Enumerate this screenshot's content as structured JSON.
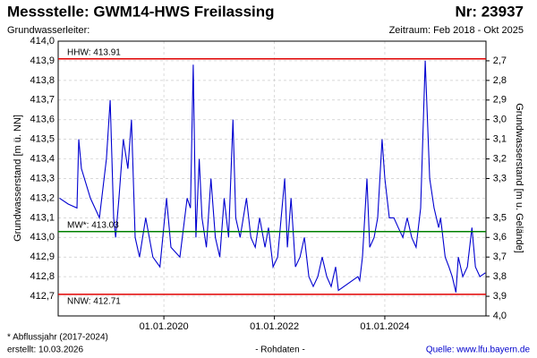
{
  "chart_data": {
    "type": "line",
    "title": "Messstelle: GWM14-HWS Freilassing",
    "station_number": "Nr: 23937",
    "subtitle": "Grundwasserleiter:",
    "period": "Zeitraum: Feb 2018 - Okt 2025",
    "ylabel": "Grundwasserstand [m ü. NN]",
    "y2label": "Grundwasserstand [m u. Gelände]",
    "footnote": "* Abflussjahr (2017-2024)",
    "created": "erstellt:  10.03.2026",
    "data_note": "- Rohdaten -",
    "source": "Quelle:  www.lfu.bayern.de",
    "grid": true,
    "xlim": [
      "2018-02-01",
      "2025-10-31"
    ],
    "xticks": [
      {
        "value": "2020-01-01",
        "label": "01.01.2020"
      },
      {
        "value": "2022-01-01",
        "label": "01.01.2022"
      },
      {
        "value": "2024-01-01",
        "label": "01.01.2024"
      }
    ],
    "ylim": [
      412.6,
      414.0
    ],
    "yticks": [
      {
        "value": 412.7,
        "label": "412,7"
      },
      {
        "value": 412.8,
        "label": "412,8"
      },
      {
        "value": 412.9,
        "label": "412,9"
      },
      {
        "value": 413.0,
        "label": "413,0"
      },
      {
        "value": 413.1,
        "label": "413,1"
      },
      {
        "value": 413.2,
        "label": "413,2"
      },
      {
        "value": 413.3,
        "label": "413,3"
      },
      {
        "value": 413.4,
        "label": "413,4"
      },
      {
        "value": 413.5,
        "label": "413,5"
      },
      {
        "value": 413.6,
        "label": "413,6"
      },
      {
        "value": 413.7,
        "label": "413,7"
      },
      {
        "value": 413.8,
        "label": "413,8"
      },
      {
        "value": 413.9,
        "label": "413,9"
      },
      {
        "value": 414.0,
        "label": "414,0"
      }
    ],
    "y2lim": [
      4.0,
      2.6
    ],
    "y2ticks": [
      {
        "value": 2.7,
        "label": "2,7"
      },
      {
        "value": 2.8,
        "label": "2,8"
      },
      {
        "value": 2.9,
        "label": "2,9"
      },
      {
        "value": 3.0,
        "label": "3,0"
      },
      {
        "value": 3.1,
        "label": "3,1"
      },
      {
        "value": 3.2,
        "label": "3,2"
      },
      {
        "value": 3.3,
        "label": "3,3"
      },
      {
        "value": 3.5,
        "label": "3,5"
      },
      {
        "value": 3.6,
        "label": "3,6"
      },
      {
        "value": 3.7,
        "label": "3,7"
      },
      {
        "value": 3.8,
        "label": "3,8"
      },
      {
        "value": 3.9,
        "label": "3,9"
      },
      {
        "value": 4.0,
        "label": "4,0"
      }
    ],
    "reference_lines": [
      {
        "value": 413.91,
        "label": "HHW: 413.91",
        "color": "#e00000"
      },
      {
        "value": 413.03,
        "label": "MW*: 413.03",
        "color": "#008000"
      },
      {
        "value": 412.71,
        "label": "NNW: 412.71",
        "color": "#e00000"
      }
    ],
    "x": [
      "2018-02-10",
      "2018-04-08",
      "2018-06-05",
      "2018-06-17",
      "2018-07-05",
      "2018-09-02",
      "2018-11-01",
      "2018-12-17",
      "2019-01-11",
      "2019-02-03",
      "2019-02-16",
      "2019-03-10",
      "2019-04-08",
      "2019-05-08",
      "2019-06-01",
      "2019-06-25",
      "2019-07-24",
      "2019-09-03",
      "2019-10-20",
      "2019-12-06",
      "2020-01-19",
      "2020-02-17",
      "2020-04-16",
      "2020-06-03",
      "2020-06-25",
      "2020-07-13",
      "2020-07-31",
      "2020-08-22",
      "2020-09-09",
      "2020-10-08",
      "2020-11-07",
      "2020-12-06",
      "2021-01-05",
      "2021-02-03",
      "2021-03-04",
      "2021-04-02",
      "2021-04-20",
      "2021-05-19",
      "2021-06-30",
      "2021-07-29",
      "2021-08-27",
      "2021-09-25",
      "2021-10-31",
      "2021-11-23",
      "2021-12-23",
      "2022-01-22",
      "2022-03-10",
      "2022-03-28",
      "2022-04-21",
      "2022-05-20",
      "2022-06-19",
      "2022-07-18",
      "2022-08-17",
      "2022-09-15",
      "2022-10-15",
      "2022-11-13",
      "2022-12-13",
      "2023-01-11",
      "2023-02-10",
      "2023-02-28",
      "2023-07-07",
      "2023-07-19",
      "2023-08-06",
      "2023-09-05",
      "2023-09-23",
      "2023-10-22",
      "2023-11-15",
      "2023-12-14",
      "2024-01-01",
      "2024-01-31",
      "2024-03-01",
      "2024-03-30",
      "2024-04-29",
      "2024-05-28",
      "2024-06-27",
      "2024-07-26",
      "2024-08-25",
      "2024-09-24",
      "2024-10-24",
      "2024-11-22",
      "2024-12-22",
      "2025-01-04",
      "2025-02-03",
      "2025-02-28",
      "2025-03-22",
      "2025-04-15",
      "2025-05-01",
      "2025-05-31",
      "2025-06-30",
      "2025-07-30",
      "2025-08-22",
      "2025-09-21",
      "2025-10-27"
    ],
    "series": [
      {
        "color": "#0000d0",
        "values": [
          413.2,
          413.17,
          413.15,
          413.5,
          413.35,
          413.2,
          413.1,
          413.4,
          413.7,
          413.1,
          413.0,
          413.2,
          413.5,
          413.35,
          413.6,
          413.0,
          412.9,
          413.1,
          412.9,
          412.85,
          413.2,
          412.95,
          412.9,
          413.2,
          413.15,
          413.88,
          413.0,
          413.4,
          413.1,
          412.95,
          413.3,
          413.0,
          412.9,
          413.2,
          413.0,
          413.6,
          413.1,
          413.0,
          413.2,
          413.0,
          412.95,
          413.1,
          412.95,
          413.05,
          412.85,
          412.9,
          413.3,
          412.95,
          413.2,
          412.85,
          412.9,
          413.0,
          412.8,
          412.75,
          412.8,
          412.9,
          412.8,
          412.75,
          412.85,
          412.73,
          412.8,
          412.78,
          412.9,
          413.3,
          412.95,
          413.0,
          413.1,
          413.5,
          413.3,
          413.1,
          413.1,
          413.05,
          413.0,
          413.1,
          413.0,
          412.95,
          413.15,
          413.9,
          413.3,
          413.15,
          413.05,
          413.1,
          412.9,
          412.85,
          412.8,
          412.72,
          412.9,
          412.8,
          412.85,
          413.05,
          412.85,
          412.8,
          412.82
        ]
      }
    ]
  }
}
